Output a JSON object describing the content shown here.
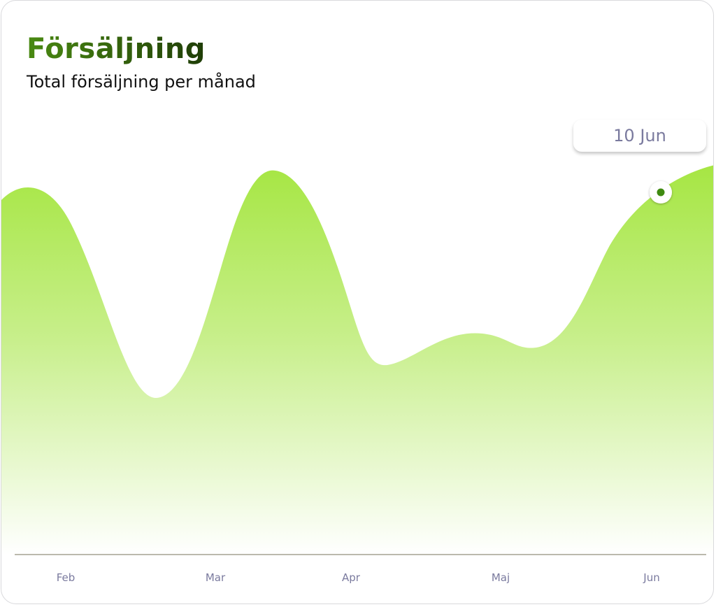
{
  "title": "Försäljning",
  "subtitle": "Total försäljning per månad",
  "tooltip": {
    "label": "10 Jun"
  },
  "colors": {
    "area_top": "#a6e643",
    "area_bottom": "#ffffff",
    "axis_line": "#77735c",
    "tick_label": "#7a7a9e",
    "title_start": "#4a8a12",
    "title_end": "#1f3d07",
    "marker": "#3f8a10"
  },
  "chart_data": {
    "type": "area",
    "title": "Försäljning",
    "subtitle": "Total försäljning per månad",
    "xlabel": "",
    "ylabel": "",
    "x_ticks": [
      "Feb",
      "Mar",
      "Apr",
      "Maj",
      "Jun"
    ],
    "grid": false,
    "y_axis_shown": false,
    "ylim": [
      0,
      100
    ],
    "series": [
      {
        "points": [
          {
            "x": "Feb",
            "y": 78
          },
          {
            "x": "Feb–Mar",
            "y": 42
          },
          {
            "x": "Mar",
            "y": 80
          },
          {
            "x": "Mar–Apr",
            "y": 51
          },
          {
            "x": "Apr–Maj",
            "y": 59
          },
          {
            "x": "Maj",
            "y": 53
          },
          {
            "x": "Jun",
            "y": 77
          },
          {
            "x": "Jun+",
            "y": 81
          }
        ]
      }
    ],
    "highlight": {
      "x": "Jun",
      "y": 77,
      "label": "10 Jun"
    }
  }
}
